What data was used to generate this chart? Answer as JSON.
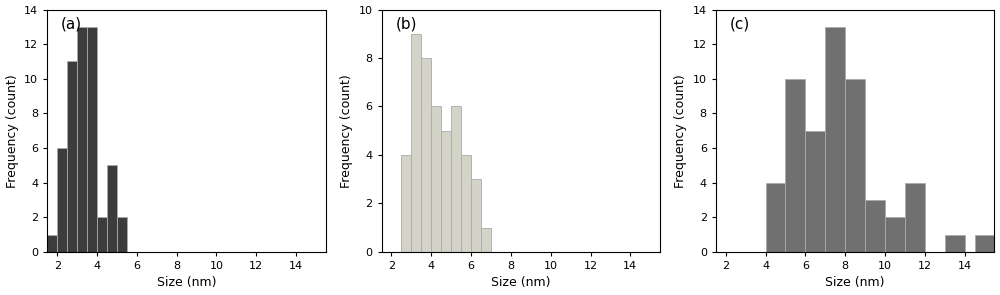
{
  "subplot_a": {
    "label": "(a)",
    "bar_left_edges": [
      1.5,
      2.0,
      2.5,
      3.0,
      3.5,
      4.0,
      4.5,
      5.0
    ],
    "bar_values": [
      1,
      6,
      11,
      13,
      13,
      2,
      5,
      2
    ],
    "bar_width": 0.5,
    "bar_color": "#3c3c3c",
    "bar_edgecolor": "#aaaaaa",
    "ylim": [
      0,
      14
    ],
    "yticks": [
      0,
      2,
      4,
      6,
      8,
      10,
      12,
      14
    ],
    "xlim": [
      1.5,
      15.5
    ],
    "xticks": [
      2,
      4,
      6,
      8,
      10,
      12,
      14
    ],
    "xlabel": "Size (nm)",
    "ylabel": "Frequency (count)"
  },
  "subplot_b": {
    "label": "(b)",
    "bar_left_edges": [
      2.5,
      3.0,
      3.5,
      4.0,
      4.5,
      5.0,
      5.5,
      6.0,
      6.5
    ],
    "bar_values": [
      4,
      9,
      8,
      6,
      5,
      6,
      4,
      3,
      1
    ],
    "bar_width": 0.5,
    "bar_color": "#d3d3c8",
    "bar_edgecolor": "#aaaaaa",
    "ylim": [
      0,
      10
    ],
    "yticks": [
      0,
      2,
      4,
      6,
      8,
      10
    ],
    "xlim": [
      1.5,
      15.5
    ],
    "xticks": [
      2,
      4,
      6,
      8,
      10,
      12,
      14
    ],
    "xlabel": "Size (nm)",
    "ylabel": "Frequency (count)"
  },
  "subplot_c": {
    "label": "(c)",
    "bar_left_edges": [
      4.0,
      5.0,
      6.0,
      7.0,
      8.0,
      9.0,
      10.0,
      11.0,
      13.0,
      14.5
    ],
    "bar_values": [
      4,
      10,
      7,
      13,
      10,
      3,
      2,
      4,
      1,
      1
    ],
    "bar_width": 1.0,
    "bar_color": "#707070",
    "bar_edgecolor": "#aaaaaa",
    "ylim": [
      0,
      14
    ],
    "yticks": [
      0,
      2,
      4,
      6,
      8,
      10,
      12,
      14
    ],
    "xlim": [
      1.5,
      15.5
    ],
    "xticks": [
      2,
      4,
      6,
      8,
      10,
      12,
      14
    ],
    "xlabel": "Size (nm)",
    "ylabel": "Frequency (count)"
  },
  "figsize": [
    10.0,
    2.95
  ],
  "dpi": 100,
  "label_fontsize": 11,
  "axis_fontsize": 9,
  "tick_fontsize": 8
}
